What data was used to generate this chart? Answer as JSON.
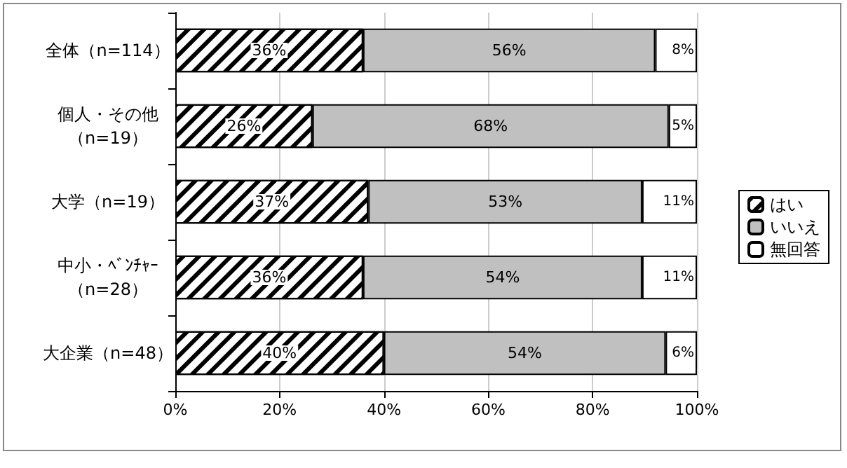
{
  "chart_data": {
    "type": "bar",
    "orientation": "horizontal",
    "stacked": true,
    "categories": [
      "全体（n=114）",
      "個人・その他（n=19）",
      "大学（n=19）",
      "中小・ﾍﾞﾝﾁｬｰ（n=28）",
      "大企業（n=48）"
    ],
    "series": [
      {
        "name": "はい",
        "color": "#ffffff",
        "values": [
          36,
          26.3,
          37,
          36,
          40
        ],
        "value_labels": [
          "36%",
          "26%",
          "37%",
          "36%",
          "40%"
        ]
      },
      {
        "name": "いいえ",
        "color": "#c0c0c0",
        "values": [
          56,
          68.3,
          52.5,
          53.5,
          54
        ],
        "value_labels": [
          "56%",
          "68%",
          "53%",
          "54%",
          "54%"
        ]
      },
      {
        "name": "無回答",
        "color": "#ffffff",
        "values": [
          8,
          5.4,
          10.5,
          10.5,
          6
        ],
        "value_labels": [
          "8%",
          "5%",
          "11%",
          "11%",
          "6%"
        ]
      }
    ],
    "xlim": [
      0,
      100
    ],
    "xticks": [
      {
        "value": 0,
        "label": "0%"
      },
      {
        "value": 20,
        "label": "20%"
      },
      {
        "value": 40,
        "label": "40%"
      },
      {
        "value": 60,
        "label": "60%"
      },
      {
        "value": 80,
        "label": "80%"
      },
      {
        "value": 100,
        "label": "100%"
      }
    ],
    "grid": "x",
    "legend": "right"
  }
}
